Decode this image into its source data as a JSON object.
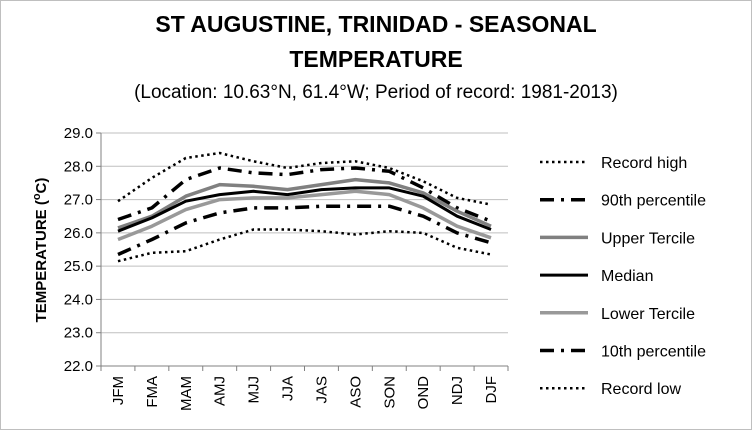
{
  "chart_data": {
    "type": "line",
    "title": "ST AUGUSTINE, TRINIDAD - SEASONAL",
    "title_line2": "TEMPERATURE",
    "subtitle": "(Location: 10.63°N, 61.4°W; Period of record: 1981-2013)",
    "ylabel": "TEMPERATURE (°C)",
    "ylabel_main": "TEMPERATURE (",
    "ylabel_sup": "o",
    "ylabel_end": "C)",
    "xlabel": "",
    "ylim": [
      22.0,
      29.0
    ],
    "yticks": [
      "22.0",
      "23.0",
      "24.0",
      "25.0",
      "26.0",
      "27.0",
      "28.0",
      "29.0"
    ],
    "categories": [
      "JFM",
      "FMA",
      "MAM",
      "AMJ",
      "MJJ",
      "JJA",
      "JAS",
      "ASO",
      "SON",
      "OND",
      "NDJ",
      "DJF"
    ],
    "grid": "horizontal",
    "legend_position": "right",
    "series": [
      {
        "name": "Record high",
        "style": "dotted",
        "color": "#000000",
        "values": [
          26.95,
          27.65,
          28.25,
          28.4,
          28.15,
          27.95,
          28.1,
          28.15,
          27.95,
          27.55,
          27.05,
          26.85
        ]
      },
      {
        "name": "90th percentile",
        "style": "dashdot",
        "color": "#000000",
        "values": [
          26.4,
          26.75,
          27.6,
          27.95,
          27.8,
          27.75,
          27.9,
          27.95,
          27.85,
          27.35,
          26.75,
          26.35
        ]
      },
      {
        "name": "Upper Tercile",
        "style": "solid",
        "color": "#808080",
        "values": [
          26.15,
          26.5,
          27.1,
          27.45,
          27.4,
          27.3,
          27.45,
          27.6,
          27.5,
          27.2,
          26.65,
          26.2
        ]
      },
      {
        "name": "Median",
        "style": "solid",
        "color": "#000000",
        "values": [
          26.05,
          26.45,
          26.95,
          27.15,
          27.25,
          27.15,
          27.3,
          27.35,
          27.35,
          27.1,
          26.5,
          26.1
        ]
      },
      {
        "name": "Lower Tercile",
        "style": "solid",
        "color": "#999999",
        "values": [
          25.8,
          26.2,
          26.7,
          27.0,
          27.05,
          27.05,
          27.15,
          27.25,
          27.15,
          26.75,
          26.2,
          25.85
        ]
      },
      {
        "name": "10th percentile",
        "style": "dashdot",
        "color": "#000000",
        "values": [
          25.35,
          25.8,
          26.3,
          26.6,
          26.75,
          26.75,
          26.8,
          26.8,
          26.8,
          26.5,
          26.0,
          25.7
        ]
      },
      {
        "name": "Record low",
        "style": "dotted",
        "color": "#000000",
        "values": [
          25.15,
          25.4,
          25.45,
          25.8,
          26.1,
          26.1,
          26.05,
          25.95,
          26.05,
          26.0,
          25.55,
          25.35
        ]
      }
    ]
  }
}
